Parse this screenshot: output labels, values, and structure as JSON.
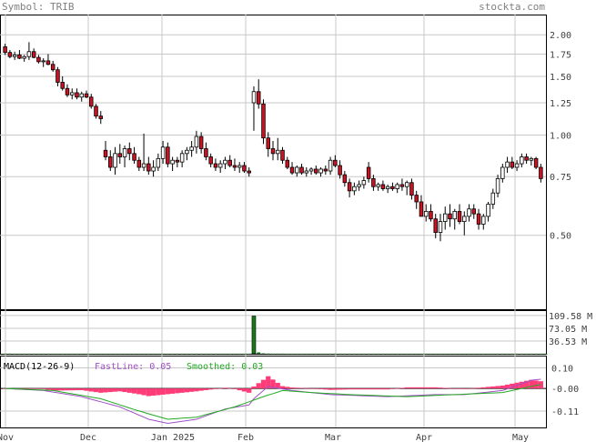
{
  "header": {
    "symbol": "Symbol: TRIB",
    "site": "stockta.com"
  },
  "colors": {
    "up": "#ffffff",
    "down": "#cc1122",
    "outline": "#000000",
    "grid": "#c8c8c8",
    "volume": "#1a7a1a",
    "macd_hist": "#ff3c78",
    "fast": "#a050c8",
    "smoothed": "#22aa22"
  },
  "chart_data": [
    {
      "type": "candlestick",
      "scale": "log",
      "ylim": [
        0.3,
        2.3
      ],
      "y_ticks": [
        {
          "value": 2.0,
          "label": "2.00"
        },
        {
          "value": 1.75,
          "label": "1.75"
        },
        {
          "value": 1.5,
          "label": "1.50"
        },
        {
          "value": 1.25,
          "label": "1.25"
        },
        {
          "value": 1.0,
          "label": "1.00"
        },
        {
          "value": 0.75,
          "label": "0.75"
        },
        {
          "value": 0.5,
          "label": "0.50"
        }
      ],
      "x_labels": [
        "Nov",
        "Dec",
        "Jan 2025",
        "Feb",
        "Mar",
        "Apr",
        "May"
      ],
      "candles": [
        [
          1.84,
          1.88,
          1.74,
          1.77
        ],
        [
          1.77,
          1.8,
          1.7,
          1.72
        ],
        [
          1.72,
          1.78,
          1.68,
          1.74
        ],
        [
          1.74,
          1.8,
          1.69,
          1.7
        ],
        [
          1.7,
          1.74,
          1.66,
          1.72
        ],
        [
          1.72,
          1.9,
          1.68,
          1.78
        ],
        [
          1.78,
          1.82,
          1.7,
          1.71
        ],
        [
          1.71,
          1.74,
          1.64,
          1.66
        ],
        [
          1.66,
          1.7,
          1.6,
          1.67
        ],
        [
          1.67,
          1.75,
          1.62,
          1.63
        ],
        [
          1.63,
          1.67,
          1.55,
          1.57
        ],
        [
          1.57,
          1.6,
          1.4,
          1.44
        ],
        [
          1.44,
          1.5,
          1.36,
          1.38
        ],
        [
          1.38,
          1.42,
          1.3,
          1.32
        ],
        [
          1.32,
          1.38,
          1.28,
          1.34
        ],
        [
          1.34,
          1.38,
          1.28,
          1.3
        ],
        [
          1.3,
          1.35,
          1.26,
          1.33
        ],
        [
          1.33,
          1.36,
          1.29,
          1.3
        ],
        [
          1.3,
          1.33,
          1.2,
          1.22
        ],
        [
          1.22,
          1.24,
          1.12,
          1.14
        ],
        [
          1.14,
          1.18,
          1.08,
          1.12
        ],
        [
          0.9,
          0.96,
          0.84,
          0.86
        ],
        [
          0.86,
          0.9,
          0.78,
          0.8
        ],
        [
          0.8,
          0.92,
          0.76,
          0.88
        ],
        [
          0.88,
          0.94,
          0.82,
          0.86
        ],
        [
          0.86,
          0.93,
          0.8,
          0.91
        ],
        [
          0.91,
          0.95,
          0.84,
          0.88
        ],
        [
          0.88,
          0.92,
          0.82,
          0.84
        ],
        [
          0.84,
          0.86,
          0.78,
          0.8
        ],
        [
          0.8,
          1.01,
          0.78,
          0.82
        ],
        [
          0.82,
          0.86,
          0.76,
          0.78
        ],
        [
          0.78,
          0.84,
          0.75,
          0.8
        ],
        [
          0.8,
          0.88,
          0.78,
          0.85
        ],
        [
          0.85,
          0.96,
          0.82,
          0.92
        ],
        [
          0.92,
          0.95,
          0.8,
          0.82
        ],
        [
          0.82,
          0.86,
          0.78,
          0.84
        ],
        [
          0.84,
          0.86,
          0.8,
          0.83
        ],
        [
          0.83,
          0.9,
          0.8,
          0.88
        ],
        [
          0.88,
          0.92,
          0.84,
          0.9
        ],
        [
          0.9,
          0.96,
          0.86,
          0.92
        ],
        [
          0.92,
          1.03,
          0.88,
          0.99
        ],
        [
          0.99,
          1.02,
          0.88,
          0.91
        ],
        [
          0.91,
          0.95,
          0.84,
          0.86
        ],
        [
          0.86,
          0.88,
          0.8,
          0.82
        ],
        [
          0.82,
          0.85,
          0.78,
          0.8
        ],
        [
          0.8,
          0.84,
          0.77,
          0.82
        ],
        [
          0.82,
          0.86,
          0.79,
          0.84
        ],
        [
          0.84,
          0.87,
          0.8,
          0.81
        ],
        [
          0.81,
          0.85,
          0.78,
          0.8
        ],
        [
          0.8,
          0.83,
          0.77,
          0.81
        ],
        [
          0.81,
          0.83,
          0.77,
          0.78
        ],
        [
          0.78,
          0.8,
          0.75,
          0.77
        ],
        [
          1.25,
          1.4,
          1.03,
          1.35
        ],
        [
          1.35,
          1.47,
          1.2,
          1.24
        ],
        [
          1.24,
          1.28,
          0.94,
          0.98
        ],
        [
          0.98,
          1.02,
          0.86,
          0.91
        ],
        [
          0.91,
          0.96,
          0.84,
          0.88
        ],
        [
          0.88,
          0.98,
          0.84,
          0.9
        ],
        [
          0.9,
          0.92,
          0.82,
          0.84
        ],
        [
          0.84,
          0.86,
          0.79,
          0.8
        ],
        [
          0.8,
          0.83,
          0.76,
          0.77
        ],
        [
          0.77,
          0.81,
          0.75,
          0.8
        ],
        [
          0.8,
          0.82,
          0.76,
          0.77
        ],
        [
          0.77,
          0.8,
          0.75,
          0.78
        ],
        [
          0.78,
          0.8,
          0.76,
          0.79
        ],
        [
          0.79,
          0.81,
          0.76,
          0.77
        ],
        [
          0.77,
          0.8,
          0.75,
          0.79
        ],
        [
          0.79,
          0.81,
          0.76,
          0.78
        ],
        [
          0.78,
          0.86,
          0.76,
          0.84
        ],
        [
          0.84,
          0.87,
          0.8,
          0.81
        ],
        [
          0.81,
          0.84,
          0.74,
          0.76
        ],
        [
          0.76,
          0.78,
          0.7,
          0.72
        ],
        [
          0.72,
          0.74,
          0.65,
          0.68
        ],
        [
          0.68,
          0.72,
          0.66,
          0.7
        ],
        [
          0.7,
          0.73,
          0.68,
          0.71
        ],
        [
          0.71,
          0.75,
          0.69,
          0.73
        ],
        [
          0.8,
          0.83,
          0.72,
          0.74
        ],
        [
          0.74,
          0.76,
          0.68,
          0.7
        ],
        [
          0.7,
          0.72,
          0.68,
          0.71
        ],
        [
          0.71,
          0.73,
          0.68,
          0.69
        ],
        [
          0.69,
          0.71,
          0.67,
          0.7
        ],
        [
          0.7,
          0.72,
          0.68,
          0.69
        ],
        [
          0.69,
          0.72,
          0.67,
          0.71
        ],
        [
          0.71,
          0.74,
          0.68,
          0.7
        ],
        [
          0.7,
          0.73,
          0.66,
          0.72
        ],
        [
          0.72,
          0.74,
          0.64,
          0.66
        ],
        [
          0.66,
          0.68,
          0.6,
          0.63
        ],
        [
          0.63,
          0.66,
          0.58,
          0.57
        ],
        [
          0.57,
          0.62,
          0.55,
          0.59
        ],
        [
          0.59,
          0.62,
          0.55,
          0.56
        ],
        [
          0.56,
          0.58,
          0.49,
          0.51
        ],
        [
          0.51,
          0.58,
          0.48,
          0.55
        ],
        [
          0.55,
          0.61,
          0.52,
          0.58
        ],
        [
          0.58,
          0.62,
          0.53,
          0.56
        ],
        [
          0.56,
          0.6,
          0.52,
          0.59
        ],
        [
          0.59,
          0.62,
          0.54,
          0.55
        ],
        [
          0.55,
          0.59,
          0.5,
          0.57
        ],
        [
          0.57,
          0.62,
          0.55,
          0.6
        ],
        [
          0.6,
          0.62,
          0.56,
          0.58
        ],
        [
          0.58,
          0.6,
          0.52,
          0.54
        ],
        [
          0.54,
          0.58,
          0.52,
          0.57
        ],
        [
          0.57,
          0.63,
          0.55,
          0.62
        ],
        [
          0.62,
          0.69,
          0.6,
          0.67
        ],
        [
          0.67,
          0.76,
          0.65,
          0.74
        ],
        [
          0.74,
          0.82,
          0.72,
          0.8
        ],
        [
          0.8,
          0.86,
          0.77,
          0.83
        ],
        [
          0.83,
          0.86,
          0.79,
          0.8
        ],
        [
          0.8,
          0.84,
          0.78,
          0.82
        ],
        [
          0.82,
          0.88,
          0.8,
          0.86
        ],
        [
          0.86,
          0.88,
          0.82,
          0.84
        ],
        [
          0.84,
          0.86,
          0.81,
          0.85
        ],
        [
          0.85,
          0.86,
          0.79,
          0.8
        ],
        [
          0.8,
          0.82,
          0.72,
          0.74
        ]
      ]
    },
    {
      "type": "bar",
      "name": "volume",
      "ylim": [
        0,
        125
      ],
      "y_ticks": [
        {
          "value": 109.58,
          "label": "109.58 M"
        },
        {
          "value": 73.05,
          "label": "73.05 M"
        },
        {
          "value": 36.53,
          "label": "36.53 M"
        }
      ],
      "spike_index": 52,
      "values": [
        0.4,
        0.4,
        0.3,
        0.3,
        0.3,
        0.3,
        0.3,
        0.3,
        0.3,
        0.3,
        0.3,
        0.3,
        0.3,
        0.3,
        0.3,
        0.3,
        0.3,
        0.3,
        0.3,
        0.3,
        0.3,
        0.3,
        0.3,
        0.3,
        0.3,
        0.3,
        0.3,
        0.3,
        0.3,
        0.3,
        0.3,
        0.3,
        0.3,
        0.3,
        0.3,
        0.3,
        0.3,
        0.3,
        0.3,
        0.3,
        0.3,
        0.3,
        0.3,
        0.3,
        0.3,
        0.3,
        0.3,
        0.3,
        0.3,
        0.3,
        0.3,
        0.3,
        108,
        4,
        1.2,
        0.6,
        0.4,
        0.4,
        0.4,
        0.3,
        0.3,
        0.3,
        0.3,
        0.3,
        0.3,
        0.3,
        0.3,
        0.3,
        0.3,
        0.3,
        0.3,
        0.3,
        0.3,
        0.3,
        0.3,
        0.3,
        0.3,
        0.3,
        0.3,
        0.3,
        0.3,
        0.3,
        0.3,
        0.3,
        0.3,
        0.3,
        0.3,
        0.3,
        0.3,
        0.3,
        0.3,
        0.3,
        0.3,
        0.3,
        0.3,
        0.3,
        0.3,
        0.3,
        0.3,
        0.3,
        0.3,
        0.3,
        0.3,
        0.3,
        0.3,
        0.3,
        0.3,
        0.3,
        0.3,
        0.3,
        0.3,
        0.3,
        0.3,
        0.3
      ]
    },
    {
      "type": "line",
      "name": "macd",
      "title": "MACD(12-26-9)",
      "fast_label": "FastLine: 0.05",
      "smoothed_label": "Smoothed: 0.03",
      "ylim": [
        -0.19,
        0.16
      ],
      "y_ticks": [
        {
          "value": 0.1,
          "label": "0.10"
        },
        {
          "value": 0.0,
          "label": "-0.00"
        },
        {
          "value": -0.11,
          "label": "-0.11"
        }
      ],
      "fast_anchors": [
        [
          0,
          0.0
        ],
        [
          8,
          -0.01
        ],
        [
          16,
          -0.04
        ],
        [
          24,
          -0.09
        ],
        [
          30,
          -0.15
        ],
        [
          34,
          -0.17
        ],
        [
          40,
          -0.15
        ],
        [
          46,
          -0.1
        ],
        [
          51,
          -0.08
        ],
        [
          52,
          -0.05
        ],
        [
          55,
          0.01
        ],
        [
          60,
          -0.01
        ],
        [
          68,
          -0.03
        ],
        [
          80,
          -0.04
        ],
        [
          90,
          -0.03
        ],
        [
          96,
          -0.03
        ],
        [
          104,
          -0.01
        ],
        [
          110,
          0.04
        ],
        [
          114,
          0.05
        ]
      ],
      "smoothed_anchors": [
        [
          0,
          0.0
        ],
        [
          10,
          -0.01
        ],
        [
          20,
          -0.05
        ],
        [
          28,
          -0.11
        ],
        [
          34,
          -0.15
        ],
        [
          40,
          -0.14
        ],
        [
          48,
          -0.09
        ],
        [
          54,
          -0.04
        ],
        [
          58,
          -0.01
        ],
        [
          64,
          -0.02
        ],
        [
          72,
          -0.03
        ],
        [
          84,
          -0.04
        ],
        [
          94,
          -0.03
        ],
        [
          104,
          -0.02
        ],
        [
          110,
          0.01
        ],
        [
          114,
          0.03
        ]
      ]
    }
  ]
}
